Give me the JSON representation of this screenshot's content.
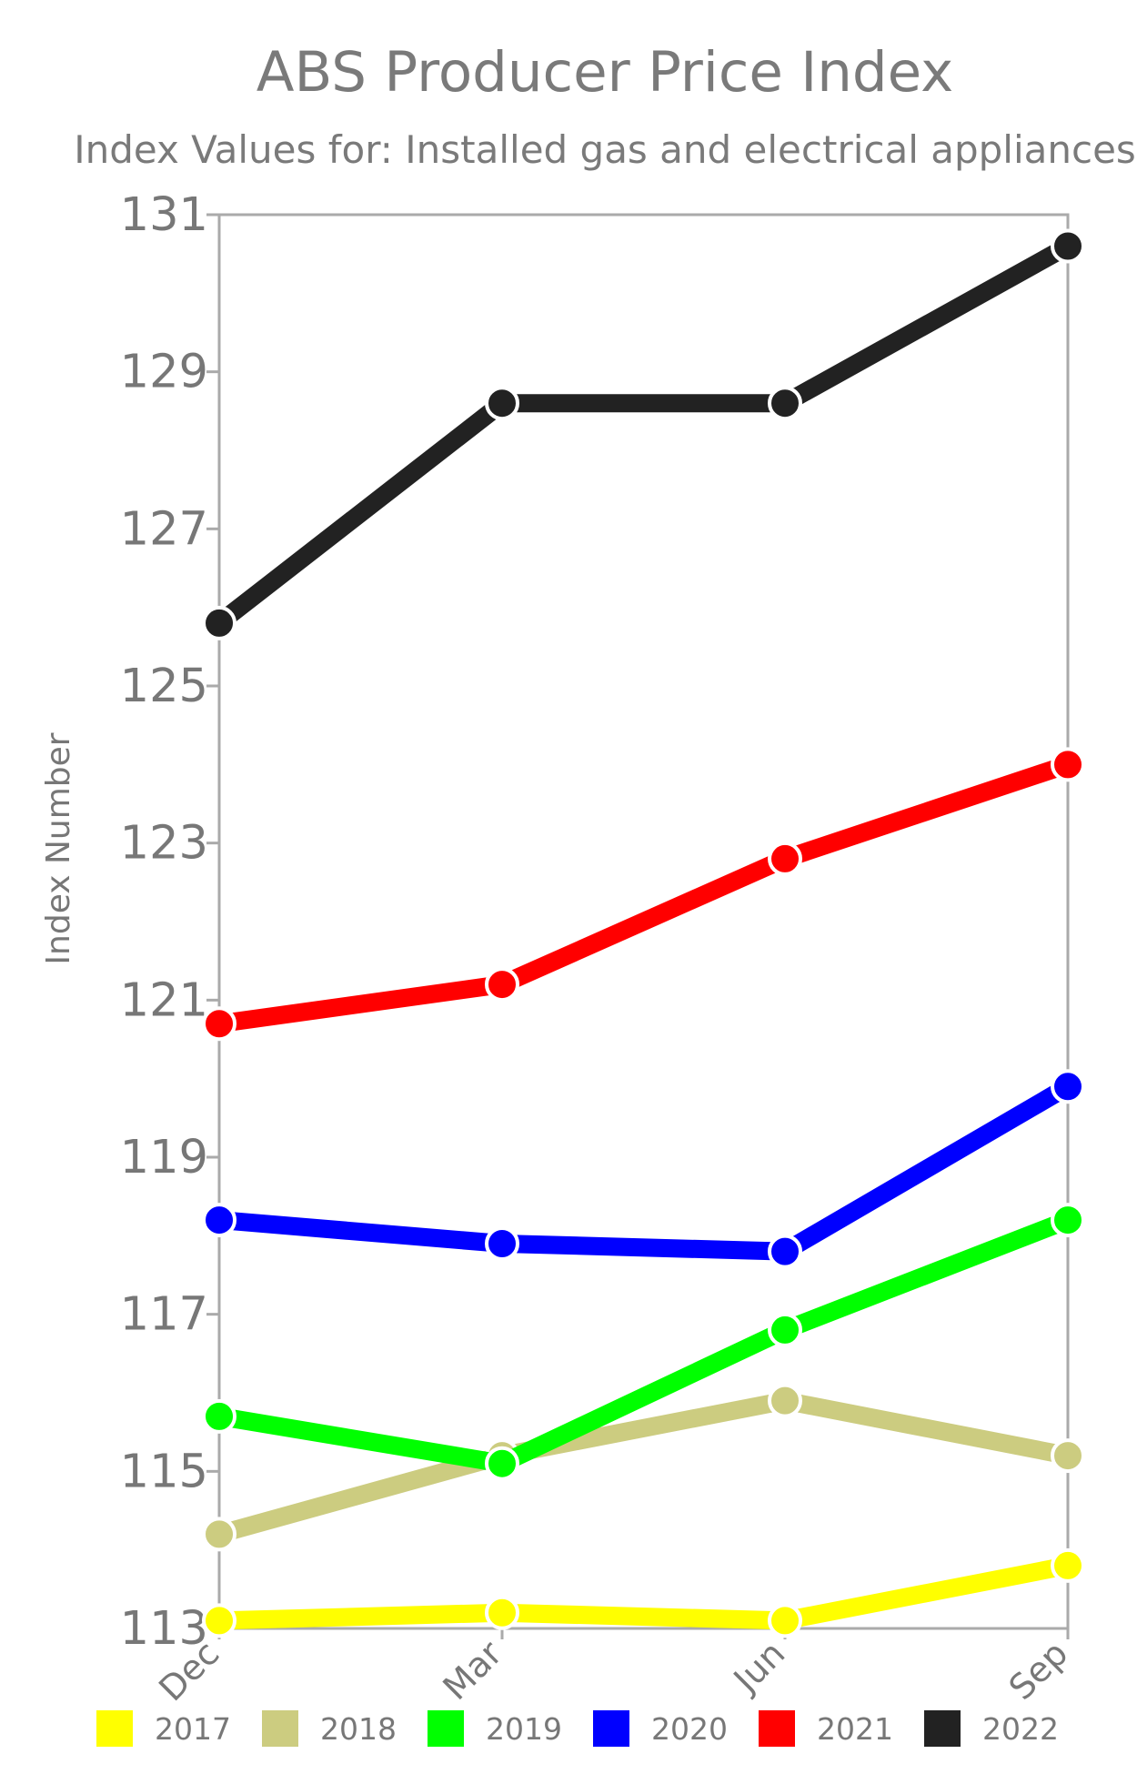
{
  "chart_data": {
    "type": "line",
    "title": "ABS Producer Price Index",
    "subtitle": "Index Values for: Installed gas and electrical appliances",
    "ylabel": "Index Number",
    "xlabel": "",
    "categories": [
      "Dec",
      "Mar",
      "Jun",
      "Sep"
    ],
    "ylim": [
      113,
      131
    ],
    "yticks": [
      113,
      115,
      117,
      119,
      121,
      123,
      125,
      127,
      129,
      131
    ],
    "grid": false,
    "legend_position": "bottom",
    "series": [
      {
        "name": "2017",
        "color": "#ffff00",
        "values": [
          113.1,
          113.2,
          113.1,
          113.8
        ]
      },
      {
        "name": "2018",
        "color": "#cccc80",
        "values": [
          114.2,
          115.2,
          115.9,
          115.2
        ]
      },
      {
        "name": "2019",
        "color": "#00ff00",
        "values": [
          115.7,
          115.1,
          116.8,
          118.2
        ]
      },
      {
        "name": "2020",
        "color": "#0000ff",
        "values": [
          118.2,
          117.9,
          117.8,
          119.9
        ]
      },
      {
        "name": "2021",
        "color": "#ff0000",
        "values": [
          120.7,
          121.2,
          122.8,
          124.0
        ]
      },
      {
        "name": "2022",
        "color": "#222222",
        "values": [
          125.8,
          128.6,
          128.6,
          130.6
        ]
      }
    ]
  }
}
